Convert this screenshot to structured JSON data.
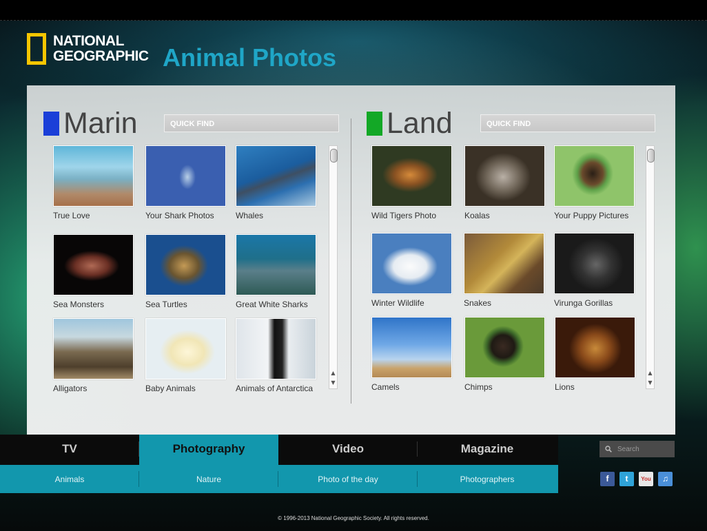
{
  "header": {
    "brand_line1": "NATIONAL",
    "brand_line2": "GEOGRAPHIC",
    "title": "Animal Photos"
  },
  "colors": {
    "accent": "#1297ad",
    "title": "#1fa6c7",
    "brand_yellow": "#f7c600",
    "marine_square": "#1a3fd8",
    "land_square": "#13a826"
  },
  "marine": {
    "title": "Marin",
    "quickfind": "QUICK FIND",
    "items": [
      {
        "label": "True Love"
      },
      {
        "label": "Your Shark Photos"
      },
      {
        "label": "Whales"
      },
      {
        "label": "Sea Monsters"
      },
      {
        "label": "Sea Turtles"
      },
      {
        "label": "Great White Sharks"
      },
      {
        "label": "Alligators"
      },
      {
        "label": "Baby Animals"
      },
      {
        "label": "Animals of Antarctica"
      }
    ]
  },
  "land": {
    "title": "Land",
    "quickfind": "QUICK FIND",
    "items": [
      {
        "label": "Wild Tigers Photo"
      },
      {
        "label": "Koalas"
      },
      {
        "label": "Your Puppy Pictures"
      },
      {
        "label": "Winter Wildlife"
      },
      {
        "label": "Snakes"
      },
      {
        "label": "Virunga Gorillas"
      },
      {
        "label": "Camels"
      },
      {
        "label": "Chimps"
      },
      {
        "label": "Lions"
      }
    ]
  },
  "nav": {
    "main": [
      "TV",
      "Photography",
      "Video",
      "Magazine"
    ],
    "active": "Photography",
    "sub": [
      "Animals",
      "Nature",
      "Photo of the day",
      "Photographers"
    ]
  },
  "search": {
    "placeholder": "Search"
  },
  "social": [
    {
      "icon": "facebook-icon",
      "glyph": "f"
    },
    {
      "icon": "twitter-icon",
      "glyph": "t"
    },
    {
      "icon": "youtube-icon",
      "glyph": "You"
    },
    {
      "icon": "itunes-icon",
      "glyph": "♫"
    }
  ],
  "footer": "© 1996-2013 National Geographic Society. All rights reserved."
}
